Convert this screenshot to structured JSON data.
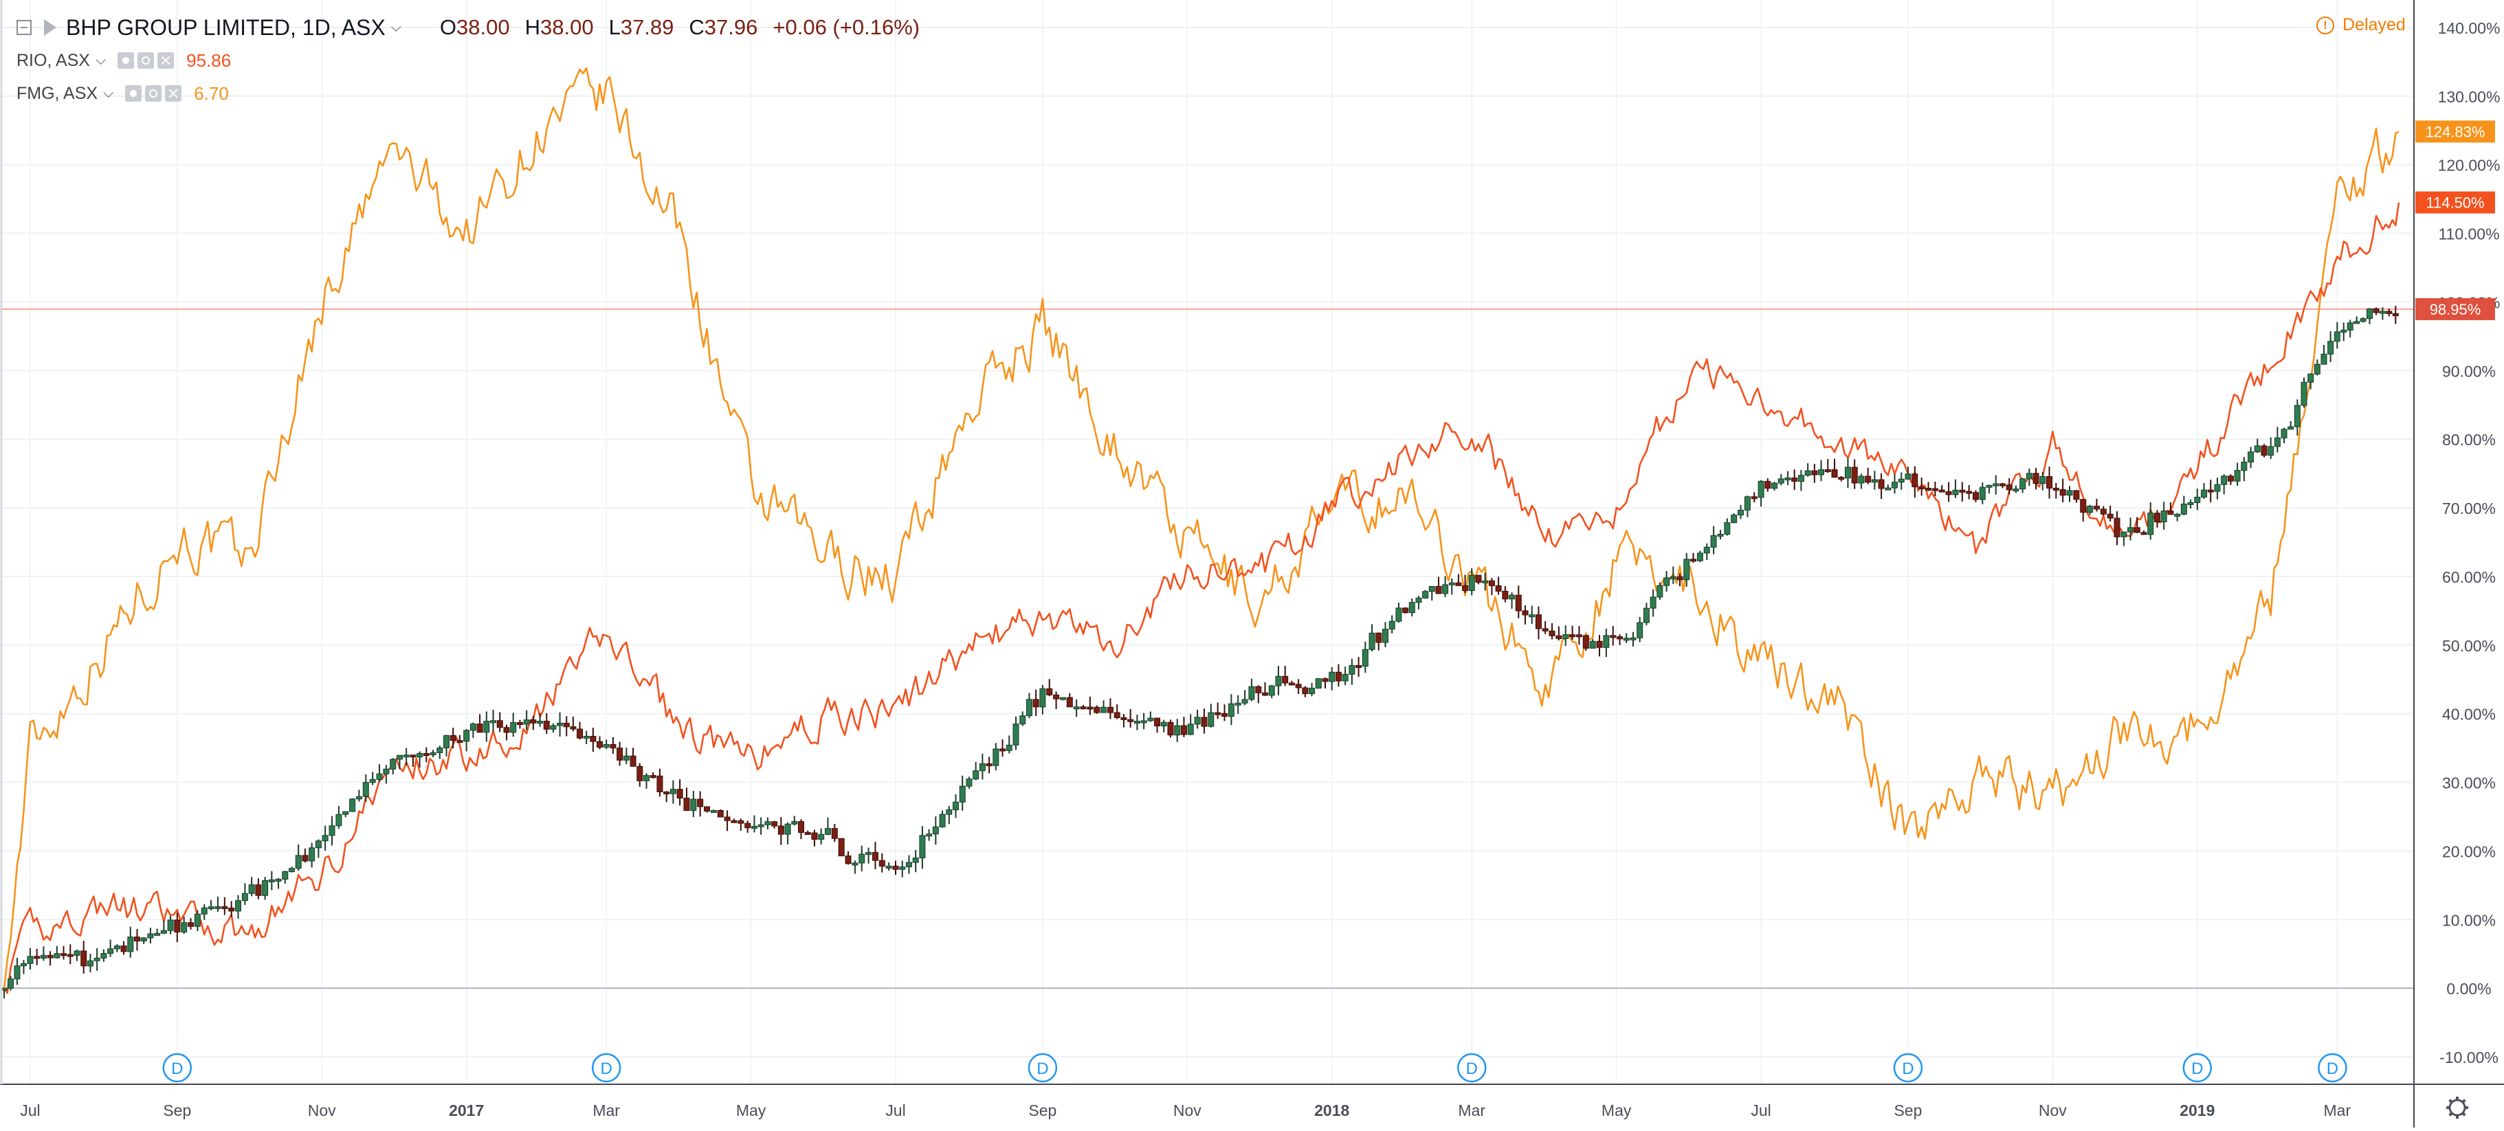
{
  "header": {
    "title": "BHP GROUP LIMITED, 1D, ASX",
    "ohlc": {
      "o_label": "O",
      "o": "38.00",
      "h_label": "H",
      "h": "38.00",
      "l_label": "L",
      "l": "37.89",
      "c_label": "C",
      "c": "37.96",
      "change": "+0.06 (+0.16%)"
    },
    "delayed_label": "Delayed"
  },
  "comparisons": [
    {
      "name": "RIO, ASX",
      "value": "95.86",
      "color": "#f4511e"
    },
    {
      "name": "FMG, ASX",
      "value": "6.70",
      "color": "#f7931a"
    }
  ],
  "colors": {
    "up": "#26a69a",
    "up_body": "#2e7d4f",
    "down": "#7a1f12",
    "rio": "#f4511e",
    "fmg": "#f7931a",
    "last_line": "#f3a49a",
    "last_badge": "#e0503e"
  },
  "chart_data": {
    "type": "line",
    "x_axis": [
      "Jul",
      "Sep",
      "Nov",
      "2017",
      "Mar",
      "May",
      "Jul",
      "Sep",
      "Nov",
      "2018",
      "Mar",
      "May",
      "Jul",
      "Sep",
      "Nov",
      "2019",
      "Mar"
    ],
    "x": [
      "2016-06-20",
      "2016-07-01",
      "2016-08-01",
      "2016-09-01",
      "2016-10-01",
      "2016-11-01",
      "2016-12-01",
      "2017-01-01",
      "2017-02-01",
      "2017-03-01",
      "2017-04-01",
      "2017-05-01",
      "2017-06-01",
      "2017-07-01",
      "2017-08-01",
      "2017-09-01",
      "2017-10-01",
      "2017-11-01",
      "2017-12-01",
      "2018-01-01",
      "2018-02-01",
      "2018-03-01",
      "2018-04-01",
      "2018-05-01",
      "2018-06-01",
      "2018-07-01",
      "2018-08-01",
      "2018-09-01",
      "2018-10-01",
      "2018-11-01",
      "2018-12-01",
      "2019-01-01",
      "2019-02-01",
      "2019-03-01",
      "2019-03-27"
    ],
    "y_axis": {
      "unit": "%",
      "ylim": [
        -14,
        144
      ],
      "ticks": [
        -10,
        0,
        10,
        20,
        30,
        40,
        50,
        60,
        70,
        80,
        90,
        100,
        110,
        120,
        130,
        140
      ]
    },
    "series": [
      {
        "name": "BHP GROUP LIMITED",
        "style": "candlestick",
        "values": [
          0,
          3,
          5,
          9,
          13,
          21,
          34,
          37,
          40,
          35,
          27,
          24,
          22,
          17,
          30,
          43,
          40,
          37,
          44,
          45,
          55,
          60,
          52,
          50,
          62,
          73,
          75,
          74,
          72,
          74,
          66,
          72,
          78,
          96,
          98.95
        ]
      },
      {
        "name": "RIO, ASX",
        "values": [
          0,
          8,
          12,
          10,
          8,
          17,
          32,
          34,
          40,
          52,
          38,
          33,
          40,
          40,
          50,
          54,
          50,
          61,
          60,
          70,
          78,
          82,
          66,
          70,
          90,
          87,
          80,
          74,
          64,
          79,
          64,
          76,
          92,
          106,
          114.5
        ]
      },
      {
        "name": "FMG, ASX",
        "values": [
          0,
          35,
          50,
          66,
          62,
          100,
          122,
          110,
          125,
          130,
          110,
          72,
          63,
          60,
          85,
          97,
          80,
          65,
          56,
          70,
          72,
          60,
          44,
          62,
          60,
          47,
          43,
          22,
          32,
          27,
          38,
          38,
          57,
          115,
          124.83
        ]
      }
    ],
    "last_value_labels": [
      {
        "series": "FMG, ASX",
        "value": "124.83%"
      },
      {
        "series": "RIO, ASX",
        "value": "114.50%"
      },
      {
        "series": "BHP GROUP LIMITED",
        "value": "98.95%"
      }
    ],
    "dividend_marker_label": "D",
    "dividend_markers": [
      "2016-09-01",
      "2017-03-01",
      "2017-09-01",
      "2018-03-01",
      "2018-09-01",
      "2019-01-01",
      "2019-02-27"
    ],
    "grid": true,
    "legend": "top-left"
  }
}
